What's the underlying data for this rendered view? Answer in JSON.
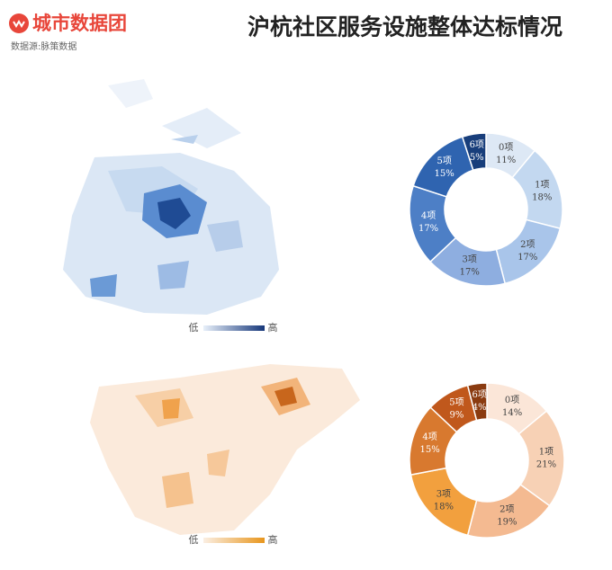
{
  "header": {
    "brand": "城市数据团",
    "source": "数据源:脉策数据",
    "title": "沪杭社区服务设施整体达标情况"
  },
  "maps": [
    {
      "legend_low": "低",
      "legend_high": "高"
    },
    {
      "legend_low": "低",
      "legend_high": "高"
    }
  ],
  "chart_data": [
    {
      "type": "pie",
      "categories": [
        "0项",
        "1项",
        "2项",
        "3项",
        "4项",
        "5项",
        "6项"
      ],
      "values": [
        11,
        18,
        17,
        17,
        17,
        15,
        5
      ],
      "value_labels": [
        "11%",
        "18%",
        "17%",
        "17%",
        "17%",
        "15%",
        "5%"
      ],
      "colors": [
        "#dde8f5",
        "#c3d8f0",
        "#a9c5ea",
        "#8eaee0",
        "#4d7fc6",
        "#2f64b0",
        "#183e7b"
      ]
    },
    {
      "type": "pie",
      "categories": [
        "0项",
        "1项",
        "2项",
        "3项",
        "4项",
        "5项",
        "6项"
      ],
      "values": [
        14,
        21,
        19,
        18,
        15,
        9,
        4
      ],
      "value_labels": [
        "14%",
        "21%",
        "19%",
        "18%",
        "15%",
        "9%",
        "4%"
      ],
      "colors": [
        "#fbe6d8",
        "#f7d1b5",
        "#f4ba91",
        "#f2a03e",
        "#d8792f",
        "#c0581c",
        "#8a3b10"
      ]
    }
  ]
}
